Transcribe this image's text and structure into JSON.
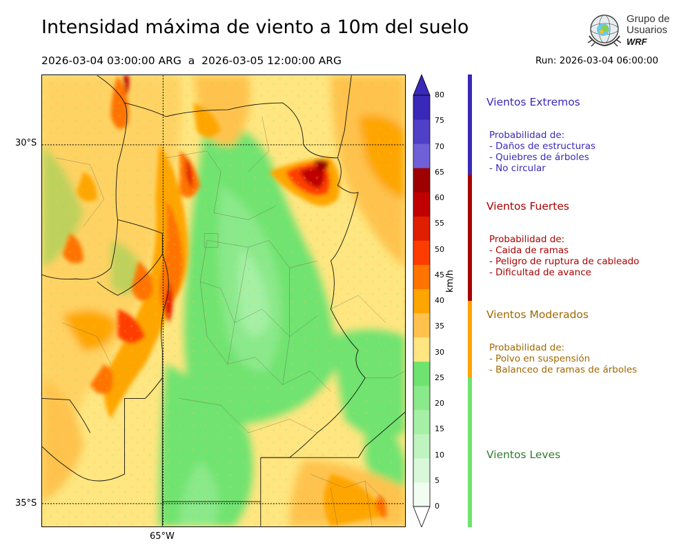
{
  "title": "Intensidad máxima de viento a 10m del suelo",
  "period": "2026-03-04 03:00:00 ARG  a  2026-03-05 12:00:00 ARG",
  "run": "Run: 2026-03-04 06:00:00",
  "logo": {
    "line1": "Grupo de",
    "line2": "Usuarios",
    "line3": "WRF"
  },
  "map": {
    "lat_labels": [
      "30°S",
      "35°S"
    ],
    "lon_labels": [
      "65°W"
    ]
  },
  "colorbar": {
    "unit": "km/h",
    "ticks": [
      "0",
      "5",
      "10",
      "15",
      "20",
      "25",
      "30",
      "35",
      "40",
      "45",
      "50",
      "55",
      "60",
      "65",
      "70",
      "75",
      "80"
    ],
    "colors": [
      "#f2fdf2",
      "#d9f8d9",
      "#bff3bf",
      "#a5f0a5",
      "#8ae98a",
      "#6fe36f",
      "#ffe680",
      "#ffc34d",
      "#ffa500",
      "#ff7300",
      "#ff3c00",
      "#e01e00",
      "#c00000",
      "#9e0000",
      "#7060d8",
      "#5040c8",
      "#3a28b8"
    ]
  },
  "categories": [
    {
      "title": "Vientos Extremos",
      "color": "#3a28b8",
      "lines": [
        "Probabilidad de:",
        "- Daños de estructuras",
        "- Quiebres de árboles",
        "- No circular"
      ]
    },
    {
      "title": "Vientos Fuertes",
      "color": "#a80000",
      "lines": [
        "Probabilidad de:",
        "- Caida de ramas",
        "- Peligro de ruptura de cableado",
        "- Dificultad de avance"
      ]
    },
    {
      "title": "Vientos Moderados",
      "color": "#a06800",
      "lines": [
        "Probabilidad de:",
        "- Polvo en suspensión",
        "- Balanceo de ramas de árboles"
      ]
    },
    {
      "title": "Vientos Leves",
      "color": "#2e7a2e",
      "lines": []
    }
  ]
}
